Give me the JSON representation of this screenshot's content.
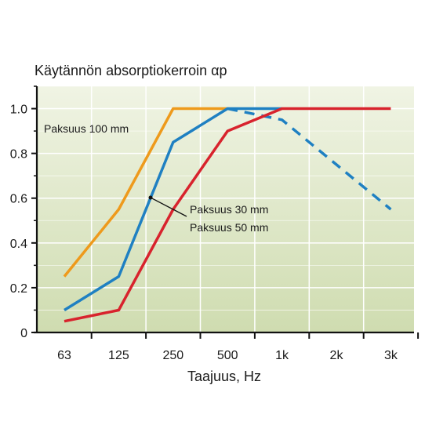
{
  "chart_data": {
    "type": "line",
    "title": "Käytännön absorptiokerroin αp",
    "xlabel": "Taajuus, Hz",
    "ylabel": "",
    "categories": [
      "63",
      "125",
      "250",
      "500",
      "1k",
      "2k",
      "3k"
    ],
    "ylim": [
      0,
      1.1
    ],
    "yticks": [
      0,
      0.2,
      0.4,
      0.6,
      0.8,
      1.0
    ],
    "ytick_labels": [
      "0",
      "0.2",
      "0.4",
      "0.6",
      "0.8",
      "1.0"
    ],
    "grid": true,
    "series": [
      {
        "id": "orange",
        "color": "#ee9a1c",
        "dashed": false,
        "points": [
          [
            0,
            0.25
          ],
          [
            1,
            0.55
          ],
          [
            2,
            1.0
          ],
          [
            3,
            1.0
          ]
        ]
      },
      {
        "id": "blue",
        "color": "#1f80c2",
        "dashed": false,
        "points": [
          [
            0,
            0.1
          ],
          [
            1,
            0.25
          ],
          [
            2,
            0.85
          ],
          [
            3,
            1.0
          ],
          [
            4,
            1.0
          ]
        ]
      },
      {
        "id": "blue-dashed",
        "color": "#1f80c2",
        "dashed": true,
        "points": [
          [
            3,
            1.0
          ],
          [
            4,
            0.95
          ],
          [
            5,
            0.75
          ],
          [
            6,
            0.55
          ]
        ]
      },
      {
        "id": "red",
        "color": "#d8232d",
        "dashed": false,
        "points": [
          [
            0,
            0.05
          ],
          [
            1,
            0.1
          ],
          [
            2,
            0.55
          ],
          [
            3,
            0.9
          ],
          [
            4,
            1.0
          ],
          [
            5,
            1.0
          ],
          [
            6,
            1.0
          ]
        ]
      }
    ],
    "annotations": {
      "paksuus_100": "Paksuus 100 mm",
      "paksuus_30": "Paksuus 30 mm",
      "paksuus_50": "Paksuus 50 mm"
    }
  }
}
